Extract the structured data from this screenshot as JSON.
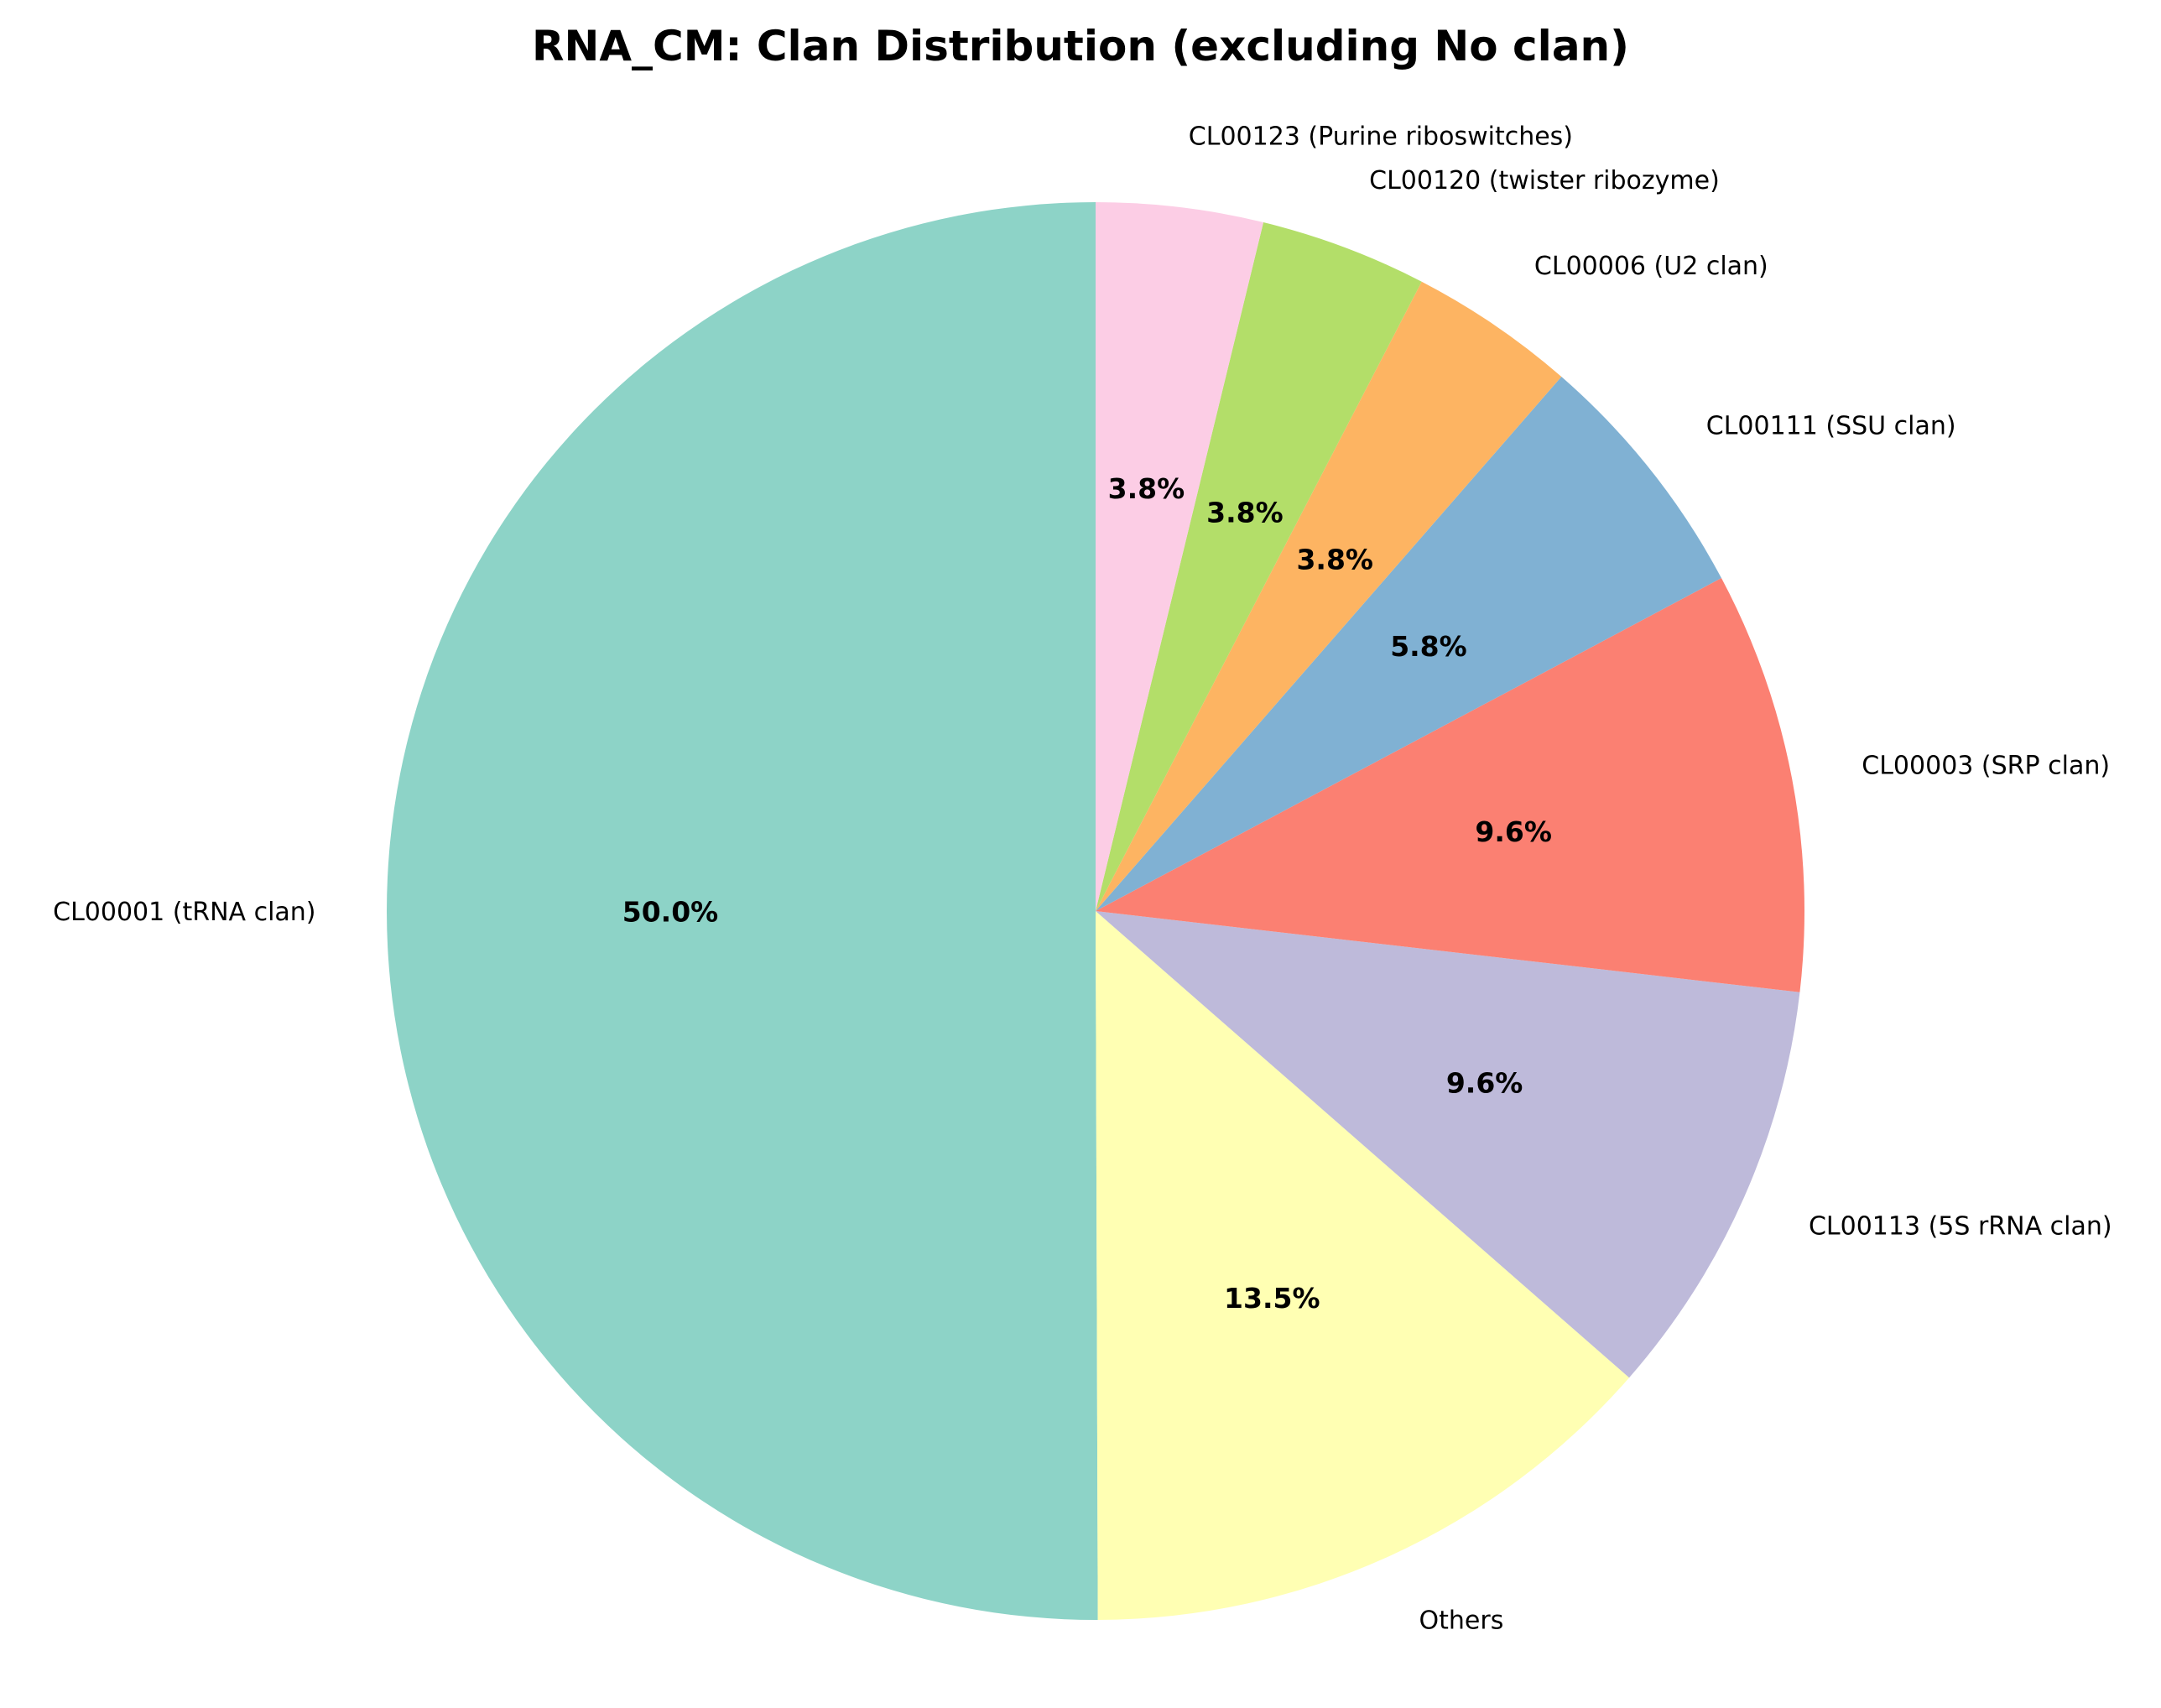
{
  "chart_data": {
    "type": "pie",
    "title": "RNA_CM: Clan Distribution (excluding No clan)",
    "start_angle_deg": 90,
    "direction": "counterclockwise",
    "slices": [
      {
        "label": "CL00001 (tRNA clan)",
        "value": 50.0,
        "pct_label": "50.0%",
        "color": "#8dd3c7"
      },
      {
        "label": "Others",
        "value": 13.5,
        "pct_label": "13.5%",
        "color": "#ffffb3"
      },
      {
        "label": "CL00113 (5S rRNA clan)",
        "value": 9.6,
        "pct_label": "9.6%",
        "color": "#bebada"
      },
      {
        "label": "CL00003 (SRP clan)",
        "value": 9.6,
        "pct_label": "9.6%",
        "color": "#fb8072"
      },
      {
        "label": "CL00111 (SSU clan)",
        "value": 5.8,
        "pct_label": "5.8%",
        "color": "#80b1d3"
      },
      {
        "label": "CL00006 (U2 clan)",
        "value": 3.8,
        "pct_label": "3.8%",
        "color": "#fdb462"
      },
      {
        "label": "CL00120 (twister ribozyme)",
        "value": 3.8,
        "pct_label": "3.8%",
        "color": "#b3de69"
      },
      {
        "label": "CL00123 (Purine riboswitches)",
        "value": 3.8,
        "pct_label": "3.8%",
        "color": "#fccde5"
      }
    ]
  }
}
